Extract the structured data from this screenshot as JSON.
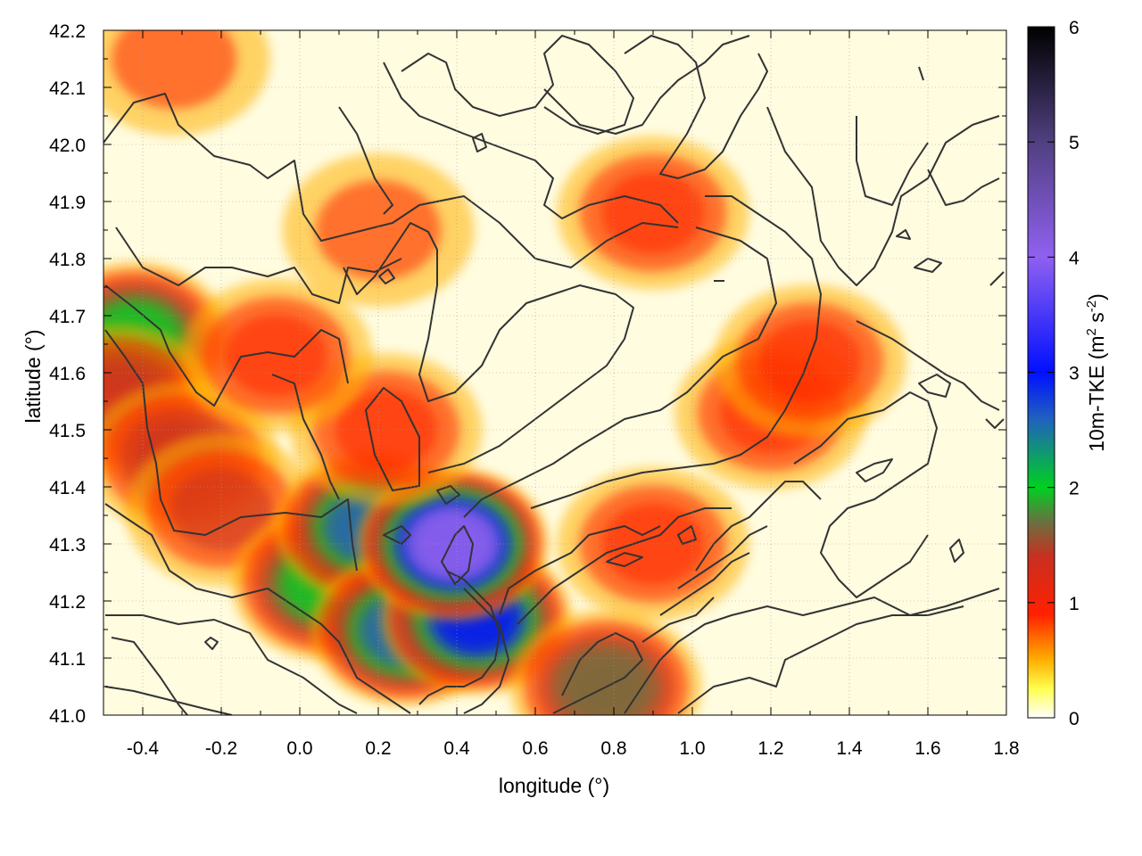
{
  "chart_data": {
    "type": "heatmap",
    "title": "",
    "xlabel": "longitude (°)",
    "ylabel": "latitude (°)",
    "colorbar_label_main": "10m-TKE (m",
    "colorbar_label_sup1": "2",
    "colorbar_label_mid": " s",
    "colorbar_label_sup2": "-2",
    "colorbar_label_end": ")",
    "xlim": [
      -0.5,
      1.8
    ],
    "ylim": [
      41.0,
      42.2
    ],
    "zlim": [
      0,
      6
    ],
    "grid": true,
    "x_ticks": [
      "-0.4",
      "-0.2",
      "0.0",
      "0.2",
      "0.4",
      "0.6",
      "0.8",
      "1.0",
      "1.2",
      "1.4",
      "1.6",
      "1.8"
    ],
    "y_ticks": [
      "41.0",
      "41.1",
      "41.2",
      "41.3",
      "41.4",
      "41.5",
      "41.6",
      "41.7",
      "41.8",
      "41.9",
      "42.0",
      "42.1",
      "42.2"
    ],
    "colorbar_ticks": [
      "0",
      "1",
      "2",
      "3",
      "4",
      "5",
      "6"
    ],
    "palette": [
      [
        0.0,
        "#ffffff"
      ],
      [
        0.25,
        "#ffff50"
      ],
      [
        0.5,
        "#ffb000"
      ],
      [
        0.9,
        "#ff2000"
      ],
      [
        1.4,
        "#c83020"
      ],
      [
        1.7,
        "#6a7040"
      ],
      [
        2.0,
        "#00d020"
      ],
      [
        2.6,
        "#2060c0"
      ],
      [
        3.0,
        "#0010ff"
      ],
      [
        4.0,
        "#9060f0"
      ],
      [
        5.0,
        "#504080"
      ],
      [
        6.0,
        "#000000"
      ]
    ],
    "tke_hotspots": [
      {
        "lon": -0.42,
        "lat": 41.66,
        "value": 2.0
      },
      {
        "lon": -0.46,
        "lat": 41.55,
        "value": 1.3
      },
      {
        "lon": -0.3,
        "lat": 41.45,
        "value": 1.2
      },
      {
        "lon": -0.2,
        "lat": 41.36,
        "value": 1.0
      },
      {
        "lon": 0.07,
        "lat": 41.23,
        "value": 2.0
      },
      {
        "lon": 0.18,
        "lat": 41.33,
        "value": 2.6
      },
      {
        "lon": 0.27,
        "lat": 41.15,
        "value": 2.3
      },
      {
        "lon": 0.45,
        "lat": 41.17,
        "value": 2.8
      },
      {
        "lon": 0.39,
        "lat": 41.3,
        "value": 3.5
      },
      {
        "lon": 0.78,
        "lat": 41.05,
        "value": 1.6
      },
      {
        "lon": 1.2,
        "lat": 41.53,
        "value": 0.9
      },
      {
        "lon": 1.3,
        "lat": 41.62,
        "value": 0.8
      },
      {
        "lon": 0.22,
        "lat": 41.5,
        "value": 0.9
      },
      {
        "lon": -0.06,
        "lat": 41.63,
        "value": 0.8
      },
      {
        "lon": 0.9,
        "lat": 41.88,
        "value": 0.8
      },
      {
        "lon": -0.32,
        "lat": 42.15,
        "value": 0.6
      },
      {
        "lon": 0.2,
        "lat": 41.85,
        "value": 0.6
      },
      {
        "lon": 0.9,
        "lat": 41.3,
        "value": 0.7
      }
    ]
  }
}
